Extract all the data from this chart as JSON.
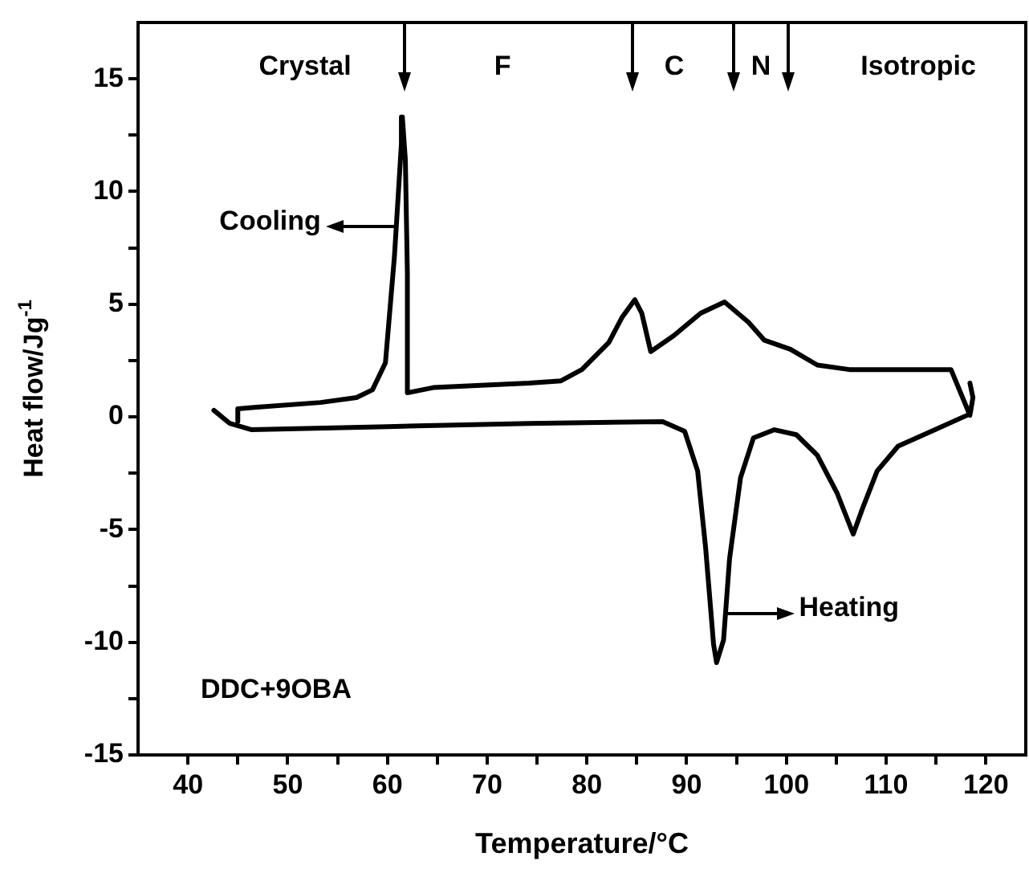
{
  "chart_data": {
    "type": "line",
    "xlabel": "Temperature/°C",
    "ylabel": "Heat flow/Jg$^{-1}$",
    "xlim": [
      35,
      124
    ],
    "ylim": [
      -15,
      17.5
    ],
    "xticks": [
      40,
      {
        "value": 45,
        "label": null
      },
      50,
      {
        "value": 55,
        "label": null
      },
      60,
      {
        "value": 65,
        "label": null
      },
      70,
      {
        "value": 75,
        "label": null
      },
      80,
      {
        "value": 85,
        "label": null
      },
      90,
      {
        "value": 95,
        "label": null
      },
      100,
      {
        "value": 105,
        "label": null
      },
      110,
      {
        "value": 115,
        "label": null
      },
      120
    ],
    "yticks": [
      -15,
      {
        "value": -12.5,
        "label": null
      },
      -10,
      {
        "value": -7.5,
        "label": null
      },
      -5,
      {
        "value": -2.5,
        "label": null
      },
      0,
      {
        "value": 2.5,
        "label": null
      },
      5,
      {
        "value": 7.5,
        "label": null
      },
      10,
      {
        "value": 12.5,
        "label": null
      },
      15
    ],
    "grid": false,
    "legend": false,
    "marker": "none",
    "line_style": "solid",
    "series": [
      {
        "color": "#000000",
        "x": [
          118.4,
          118.7,
          118.4,
          116.5,
          111.6,
          106.3,
          103.1,
          100.4,
          97.8,
          96.2,
          93.8,
          91.4,
          88.7,
          86.4,
          85.5,
          84.8,
          83.5,
          82.2,
          79.5,
          77.4,
          74.2,
          69.4,
          64.6,
          62.0,
          62.0,
          61.8,
          61.5,
          61.4,
          60.7,
          59.8,
          58.5,
          56.9,
          53.3,
          46.9,
          45.0,
          45.0
        ],
        "values": [
          1.5,
          0.86,
          0.07,
          2.1,
          2.1,
          2.1,
          2.3,
          3.0,
          3.4,
          4.2,
          5.1,
          4.6,
          3.6,
          2.9,
          4.6,
          5.2,
          4.4,
          3.3,
          2.1,
          1.6,
          1.5,
          1.4,
          1.3,
          1.07,
          6.4,
          11.4,
          13.3,
          12.1,
          7.1,
          2.4,
          1.2,
          0.86,
          0.64,
          0.43,
          0.36,
          -0.2
        ]
      },
      {
        "color": "#000000",
        "x": [
          42.6,
          44.2,
          46.4,
          60,
          74.2,
          87.6,
          89.8,
          91.1,
          91.9,
          92.7,
          93.0,
          93.7,
          94.3,
          95.4,
          96.7,
          98.8,
          101.0,
          103.1,
          105.1,
          106.7,
          107.6,
          109.1,
          111.2,
          114.9,
          118.1
        ],
        "values": [
          0.29,
          -0.29,
          -0.57,
          -0.43,
          -0.29,
          -0.21,
          -0.64,
          -2.4,
          -5.8,
          -10.1,
          -10.9,
          -9.9,
          -6.3,
          -2.7,
          -0.93,
          -0.57,
          -0.79,
          -1.7,
          -3.4,
          -5.2,
          -4.1,
          -2.4,
          -1.3,
          -0.57,
          0.07
        ]
      }
    ],
    "annotations": [
      "Crystal",
      "F",
      "C",
      "N",
      "Isotropic",
      {
        "text": "Cooling",
        "x": 60.9,
        "y": 8.64
      },
      {
        "text": "Heating",
        "x": 93.7,
        "y": -8.5
      },
      "DDC+9OBA"
    ]
  }
}
